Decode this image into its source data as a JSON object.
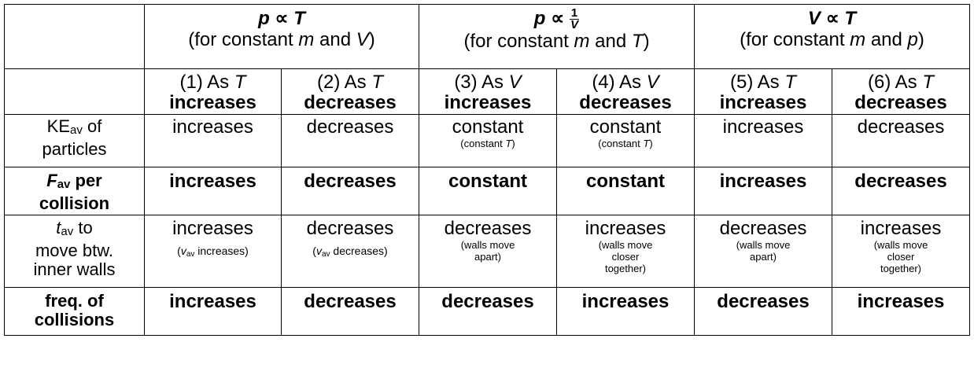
{
  "groups": [
    {
      "law_lhs": "p",
      "law_rhs": "T",
      "cond_pre": "(for constant ",
      "cond_v1": "m",
      "cond_and": " and ",
      "cond_v2": "V",
      "cond_post": ")"
    },
    {
      "law_lhs": "p",
      "law_num": "1",
      "law_den": "V",
      "cond_pre": "(for constant ",
      "cond_v1": "m",
      "cond_and": " and ",
      "cond_v2": "T",
      "cond_post": ")"
    },
    {
      "law_lhs": "V",
      "law_rhs": "T",
      "cond_pre": "(for constant ",
      "cond_v1": "m",
      "cond_and": " and ",
      "cond_v2": "p",
      "cond_post": ")"
    }
  ],
  "proportional_symbol": "∝",
  "cases": [
    {
      "num": "(1) As ",
      "var": "T",
      "dir": "increases"
    },
    {
      "num": "(2) As ",
      "var": "T",
      "dir": "decreases"
    },
    {
      "num": "(3) As ",
      "var": "V",
      "dir": "increases"
    },
    {
      "num": "(4) As ",
      "var": "V",
      "dir": "decreases"
    },
    {
      "num": "(5) As ",
      "var": "T",
      "dir": "increases"
    },
    {
      "num": "(6) As ",
      "var": "T",
      "dir": "decreases"
    }
  ],
  "rows": {
    "ke": {
      "label_main": "KE",
      "label_sub": "av",
      "label_rest": " of",
      "label_line2": "particles",
      "cells": [
        {
          "value": "increases",
          "note": ""
        },
        {
          "value": "decreases",
          "note": ""
        },
        {
          "value": "constant",
          "note_pre": "(constant ",
          "note_var": "T",
          "note_post": ")"
        },
        {
          "value": "constant",
          "note_pre": "(constant ",
          "note_var": "T",
          "note_post": ")"
        },
        {
          "value": "increases",
          "note": ""
        },
        {
          "value": "decreases",
          "note": ""
        }
      ]
    },
    "force": {
      "label_main": "F",
      "label_sub": "av",
      "label_rest": " per",
      "label_line2": "collision",
      "cells": [
        "increases",
        "decreases",
        "constant",
        "constant",
        "increases",
        "decreases"
      ]
    },
    "time": {
      "label_main": "t",
      "label_sub": "av",
      "label_rest": " to",
      "label_line2": "move btw.",
      "label_line3": "inner walls",
      "cells": [
        {
          "value": "increases",
          "note_var": "v",
          "note_sub": "av",
          "note_post": " increases)"
        },
        {
          "value": "decreases",
          "note_var": "v",
          "note_sub": "av",
          "note_post": " decreases)"
        },
        {
          "value": "decreases",
          "note_l1": "(walls move",
          "note_l2": "apart)"
        },
        {
          "value": "increases",
          "note_l1": "(walls move",
          "note_l2": "closer",
          "note_l3": "together)"
        },
        {
          "value": "decreases",
          "note_l1": "(walls move",
          "note_l2": "apart)"
        },
        {
          "value": "increases",
          "note_l1": "(walls move",
          "note_l2": "closer",
          "note_l3": "together)"
        }
      ]
    },
    "freq": {
      "label_line1": "freq. of",
      "label_line2": "collisions",
      "cells": [
        "increases",
        "decreases",
        "decreases",
        "increases",
        "decreases",
        "increases"
      ]
    }
  }
}
